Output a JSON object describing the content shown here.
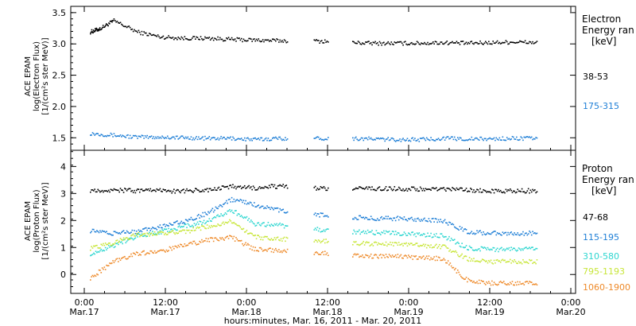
{
  "chart_data": [
    {
      "type": "scatter",
      "panel": "electron",
      "ylabel_lines": [
        "ACE EPAM",
        "log(Electron Flux)",
        "[1/(cm²s ster MeV)]"
      ],
      "ylim": [
        1.3,
        3.6
      ],
      "yticks": [
        "3.5",
        "3.0",
        "2.5",
        "2.0",
        "1.5"
      ],
      "legend_title_lines": [
        "Electron",
        "Energy ran",
        "[keV]"
      ],
      "series": [
        {
          "name": "38-53",
          "color": "#000000",
          "x": [
            0.5,
            0.7,
            1.0,
            1.5,
            2.0,
            2.5,
            3.0,
            3.5,
            4.0,
            4.5,
            5.0,
            5.5,
            6.0,
            6.5,
            7.0,
            7.5,
            8.0,
            8.5,
            9.0,
            9.5,
            10.0
          ],
          "y": [
            3.2,
            3.25,
            3.38,
            3.2,
            3.12,
            3.1,
            3.1,
            3.08,
            3.07,
            3.06,
            3.06,
            3.05,
            3.03,
            3.02,
            3.02,
            3.02,
            3.03,
            3.02,
            3.03,
            3.04,
            3.03
          ]
        },
        {
          "name": "175-315",
          "color": "#1f7fd6",
          "x": [
            0.5,
            1.0,
            1.5,
            2.0,
            2.5,
            3.0,
            3.5,
            4.0,
            4.5,
            5.0,
            5.5,
            6.0,
            6.5,
            7.0,
            7.5,
            8.0,
            8.5,
            9.0,
            9.5,
            10.0
          ],
          "y": [
            1.58,
            1.55,
            1.52,
            1.52,
            1.51,
            1.5,
            1.5,
            1.48,
            1.5,
            1.5,
            1.5,
            1.5,
            1.49,
            1.48,
            1.48,
            1.5,
            1.49,
            1.49,
            1.5,
            1.5
          ]
        }
      ]
    },
    {
      "type": "scatter",
      "panel": "proton",
      "ylabel_lines": [
        "ACE EPAM",
        "log(Proton Flux)",
        "[1/(cm²s ster MeV)]"
      ],
      "ylim": [
        -0.7,
        4.6
      ],
      "yticks": [
        "4",
        "3",
        "2",
        "1",
        "0"
      ],
      "legend_title_lines": [
        "Proton",
        "Energy ran",
        "[keV]"
      ],
      "series": [
        {
          "name": "47-68",
          "color": "#000000",
          "x": [
            0.5,
            1.0,
            1.5,
            2.0,
            2.5,
            3.0,
            3.5,
            4.0,
            4.5,
            5.0,
            5.5,
            6.0,
            6.5,
            7.0,
            7.5,
            8.0,
            8.5,
            9.0,
            9.5,
            10.0
          ],
          "y": [
            3.15,
            3.15,
            3.12,
            3.12,
            3.12,
            3.15,
            3.28,
            3.22,
            3.3,
            3.25,
            3.2,
            3.22,
            3.2,
            3.2,
            3.18,
            3.18,
            3.15,
            3.12,
            3.12,
            3.12
          ]
        },
        {
          "name": "115-195",
          "color": "#1f7fd6",
          "x": [
            0.5,
            1.0,
            1.5,
            2.0,
            2.5,
            3.0,
            3.5,
            4.0,
            4.5,
            5.0,
            5.5,
            6.0,
            6.5,
            7.0,
            7.5,
            8.0,
            8.5,
            9.0,
            9.5,
            10.0
          ],
          "y": [
            1.65,
            1.55,
            1.6,
            1.8,
            2.0,
            2.3,
            2.8,
            2.6,
            2.4,
            2.3,
            2.2,
            2.15,
            2.1,
            2.1,
            2.05,
            2.0,
            1.6,
            1.55,
            1.55,
            1.55
          ]
        },
        {
          "name": "310-580",
          "color": "#2ed6d0",
          "x": [
            0.5,
            1.0,
            1.5,
            2.0,
            2.5,
            3.0,
            3.5,
            4.0,
            4.5,
            5.0,
            5.5,
            6.0,
            6.5,
            7.0,
            7.5,
            8.0,
            8.5,
            9.0,
            9.5,
            10.0
          ],
          "y": [
            0.8,
            1.1,
            1.45,
            1.6,
            1.8,
            2.0,
            2.4,
            1.9,
            1.85,
            1.75,
            1.65,
            1.6,
            1.58,
            1.55,
            1.5,
            1.45,
            1.0,
            0.95,
            0.95,
            0.95
          ]
        },
        {
          "name": "795-1193",
          "color": "#c8e63a",
          "x": [
            0.5,
            1.0,
            1.5,
            2.0,
            2.5,
            3.0,
            3.5,
            4.0,
            4.5,
            5.0,
            5.5,
            6.0,
            6.5,
            7.0,
            7.5,
            8.0,
            8.5,
            9.0,
            9.5,
            10.0
          ],
          "y": [
            1.0,
            1.2,
            1.5,
            1.55,
            1.6,
            1.8,
            2.0,
            1.4,
            1.35,
            1.3,
            1.25,
            1.2,
            1.15,
            1.15,
            1.1,
            1.05,
            0.6,
            0.5,
            0.5,
            0.5
          ]
        },
        {
          "name": "1060-1900",
          "color": "#ee8a2a",
          "x": [
            0.5,
            1.0,
            1.5,
            2.0,
            2.5,
            3.0,
            3.5,
            4.0,
            4.5,
            5.0,
            5.5,
            6.0,
            6.5,
            7.0,
            7.5,
            8.0,
            8.5,
            9.0,
            9.5,
            10.0
          ],
          "y": [
            -0.1,
            0.5,
            0.8,
            0.9,
            1.1,
            1.3,
            1.4,
            0.95,
            0.9,
            0.85,
            0.8,
            0.75,
            0.7,
            0.7,
            0.65,
            0.6,
            -0.2,
            -0.3,
            -0.3,
            -0.3
          ]
        }
      ]
    }
  ],
  "x_axis": {
    "ticks": [
      {
        "time": "0:00",
        "date": "Mar.17"
      },
      {
        "time": "12:00",
        "date": "Mar.17"
      },
      {
        "time": "0:00",
        "date": "Mar.18"
      },
      {
        "time": "12:00",
        "date": "Mar.18"
      },
      {
        "time": "0:00",
        "date": "Mar.19"
      },
      {
        "time": "12:00",
        "date": "Mar.19"
      },
      {
        "time": "0:00",
        "date": "Mar.20"
      }
    ],
    "title": "hours:minutes, Mar. 16, 2011 - Mar. 20, 2011"
  },
  "colors": {
    "black": "#000000",
    "blue": "#1f7fd6",
    "cyan": "#2ed6d0",
    "yellow": "#c8e63a",
    "orange": "#ee8a2a"
  }
}
